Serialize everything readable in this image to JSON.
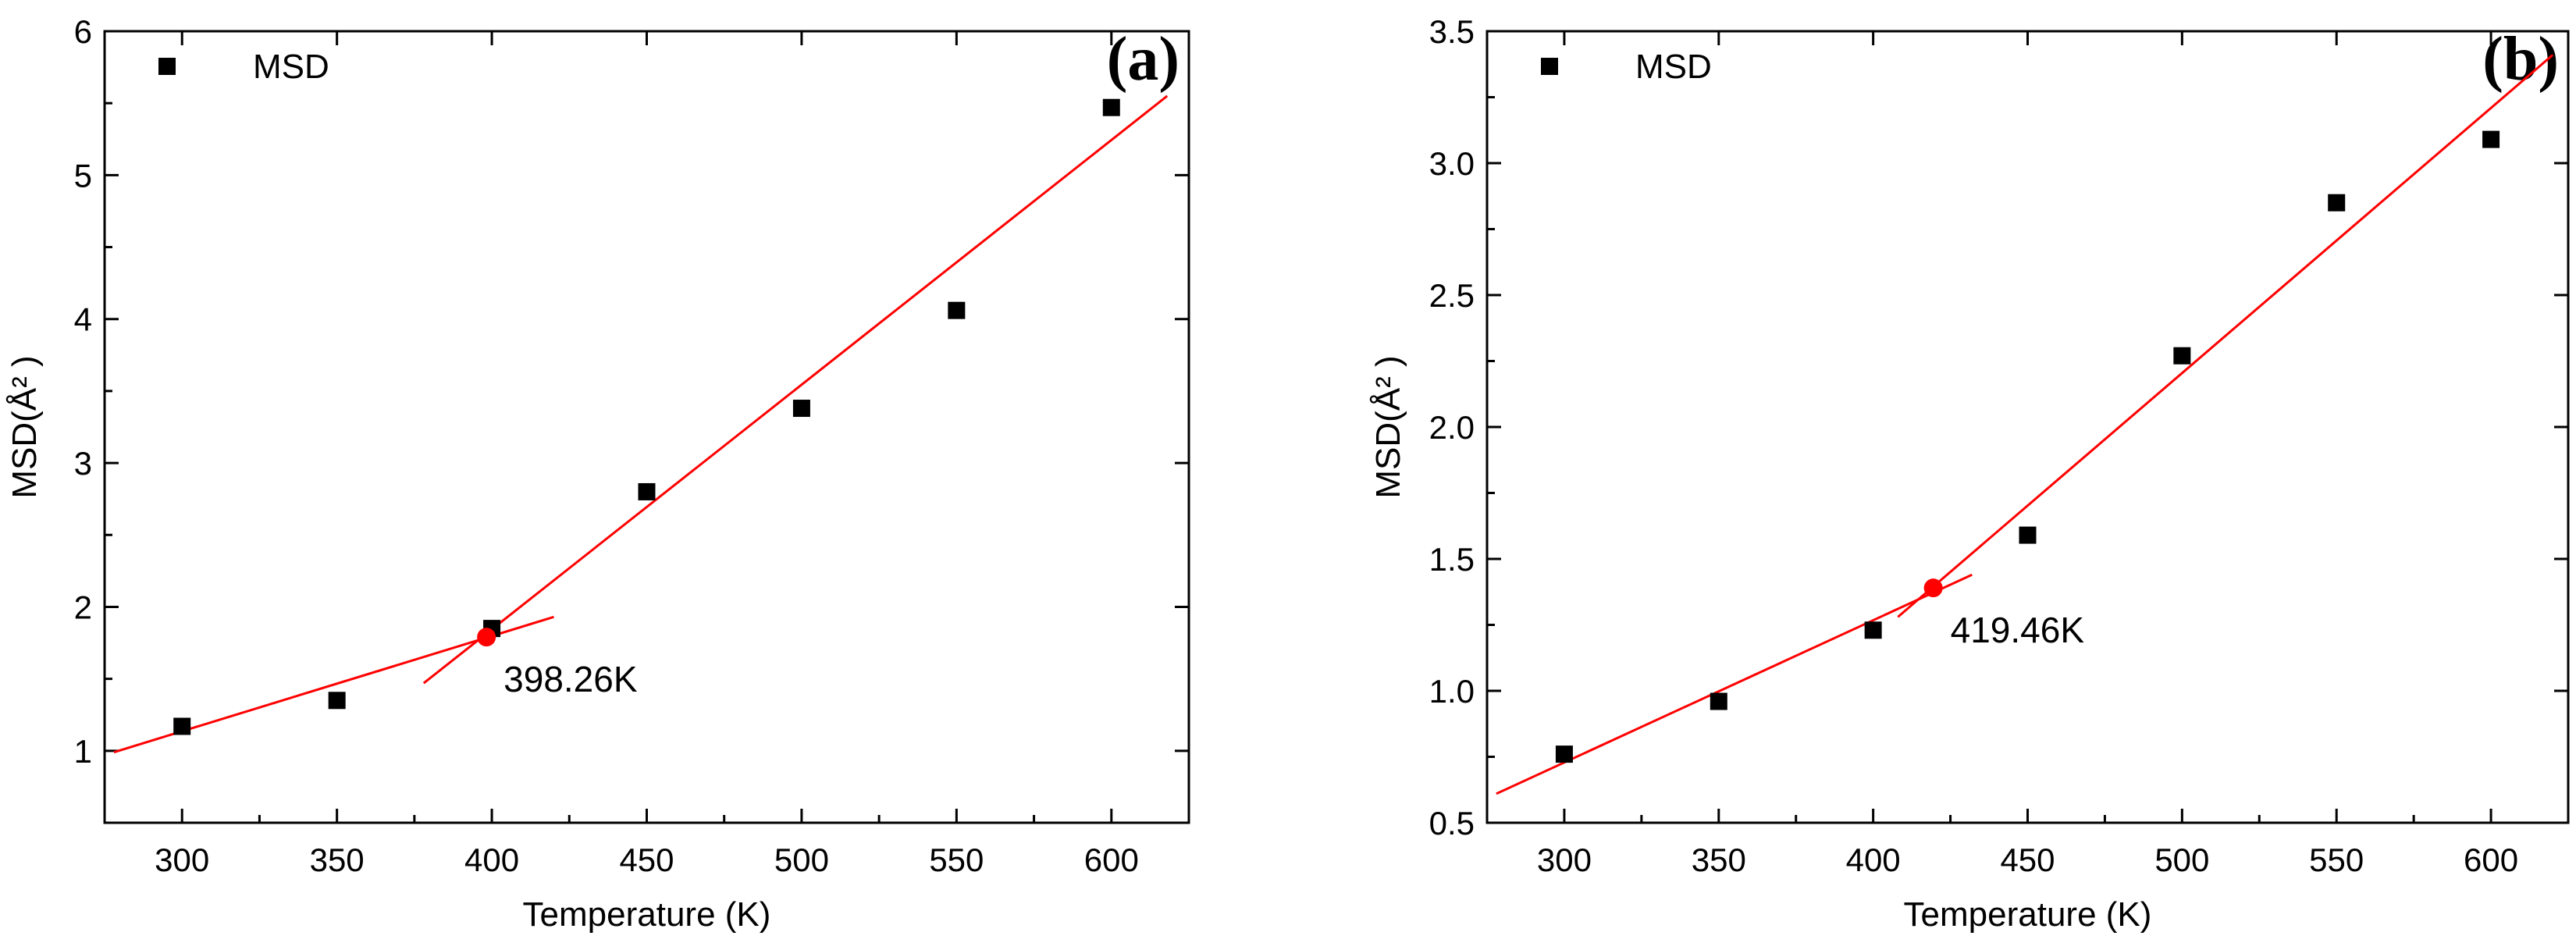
{
  "chart_data": [
    {
      "type": "scatter",
      "panel_label": "(a)",
      "xlabel": "Temperature (K)",
      "ylabel": "MSD(Å² )",
      "xlim": [
        275,
        625
      ],
      "ylim": [
        0.5,
        6
      ],
      "x_ticks": [
        300,
        350,
        400,
        450,
        500,
        550,
        600
      ],
      "x_tick_labels": [
        "300",
        "350",
        "400",
        "450",
        "500",
        "550",
        "600"
      ],
      "y_ticks": [
        1,
        2,
        3,
        4,
        5,
        6
      ],
      "y_tick_labels": [
        "1",
        "2",
        "3",
        "4",
        "5",
        "6"
      ],
      "legend": {
        "label": "MSD",
        "marker": "square",
        "position": "top-left"
      },
      "series": [
        {
          "name": "MSD",
          "x": [
            300,
            350,
            400,
            450,
            500,
            550,
            600
          ],
          "y": [
            1.17,
            1.35,
            1.85,
            2.8,
            3.38,
            4.06,
            5.47
          ],
          "color": "#000000"
        }
      ],
      "fit_lines": [
        {
          "name": "low-temperature fit",
          "x1": 278,
          "y1": 0.99,
          "x2": 420,
          "y2": 1.93,
          "color": "#ff0000"
        },
        {
          "name": "high-temperature fit",
          "x1": 378,
          "y1": 1.47,
          "x2": 618,
          "y2": 5.55,
          "color": "#ff0000"
        }
      ],
      "intersection": {
        "x": 398.26,
        "y": 1.79,
        "label": "398.26K",
        "color": "#ff0000"
      }
    },
    {
      "type": "scatter",
      "panel_label": "(b)",
      "xlabel": "Temperature (K)",
      "ylabel": "MSD(Å² )",
      "xlim": [
        275,
        625
      ],
      "ylim": [
        0.5,
        3.5
      ],
      "x_ticks": [
        300,
        350,
        400,
        450,
        500,
        550,
        600
      ],
      "x_tick_labels": [
        "300",
        "350",
        "400",
        "450",
        "500",
        "550",
        "600"
      ],
      "y_ticks": [
        0.5,
        1.0,
        1.5,
        2.0,
        2.5,
        3.0,
        3.5
      ],
      "y_tick_labels": [
        "0.5",
        "1.0",
        "1.5",
        "2.0",
        "2.5",
        "3.0",
        "3.5"
      ],
      "legend": {
        "label": "MSD",
        "marker": "square",
        "position": "top-left"
      },
      "series": [
        {
          "name": "MSD",
          "x": [
            300,
            350,
            400,
            450,
            500,
            550,
            600
          ],
          "y": [
            0.76,
            0.96,
            1.23,
            1.59,
            2.27,
            2.85,
            3.09
          ],
          "color": "#000000"
        }
      ],
      "fit_lines": [
        {
          "name": "low-temperature fit",
          "x1": 278,
          "y1": 0.61,
          "x2": 432,
          "y2": 1.44,
          "color": "#ff0000"
        },
        {
          "name": "high-temperature fit",
          "x1": 408,
          "y1": 1.28,
          "x2": 620,
          "y2": 3.41,
          "color": "#ff0000"
        }
      ],
      "intersection": {
        "x": 419.46,
        "y": 1.39,
        "label": "419.46K",
        "color": "#ff0000"
      }
    }
  ]
}
